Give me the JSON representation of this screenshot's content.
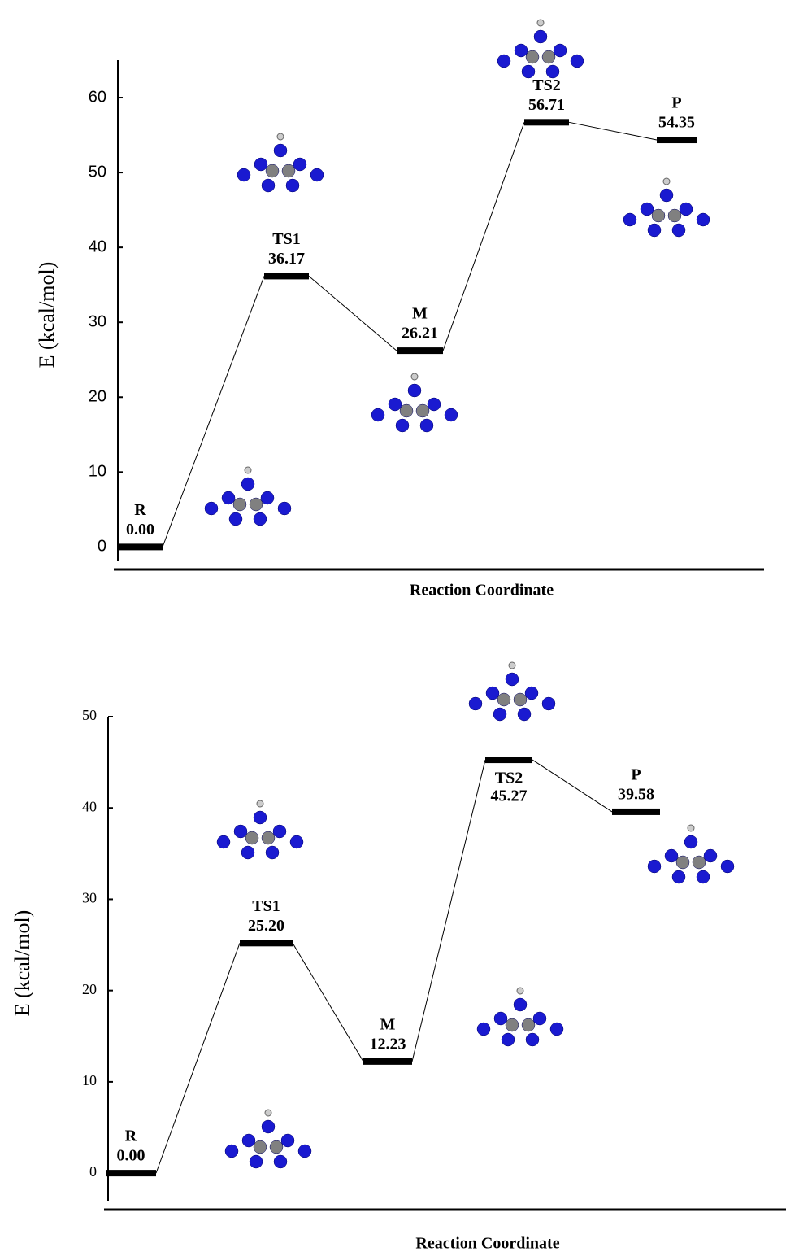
{
  "chart_data": [
    {
      "type": "energy",
      "categories": [
        "R",
        "TS1",
        "M",
        "TS2",
        "P"
      ],
      "values": [
        0,
        36.17,
        26.21,
        56.71,
        54.35
      ],
      "value_labels": [
        "0.00",
        "36.17",
        "26.21",
        "56.71",
        "54.35"
      ],
      "color": "#000000",
      "ylim": [
        -3,
        65
      ],
      "yticks": [
        0,
        10,
        20,
        30,
        40,
        50,
        60
      ],
      "xlabel": "Reaction Coordinate",
      "ylabel": "E (kcal/mol)"
    },
    {
      "type": "energy",
      "categories": [
        "R",
        "TS1",
        "M",
        "TS2",
        "P"
      ],
      "values": [
        0,
        25.2,
        12.23,
        45.27,
        39.58
      ],
      "value_labels": [
        "0.00",
        "25.20",
        "12.23",
        "45.27",
        "39.58"
      ],
      "color": "#000000",
      "ylim": [
        -4,
        50
      ],
      "yticks": [
        0,
        10,
        20,
        30,
        40,
        50
      ],
      "xlabel": "Reaction Coordinate",
      "ylabel": "E (kcal/mol)"
    }
  ]
}
